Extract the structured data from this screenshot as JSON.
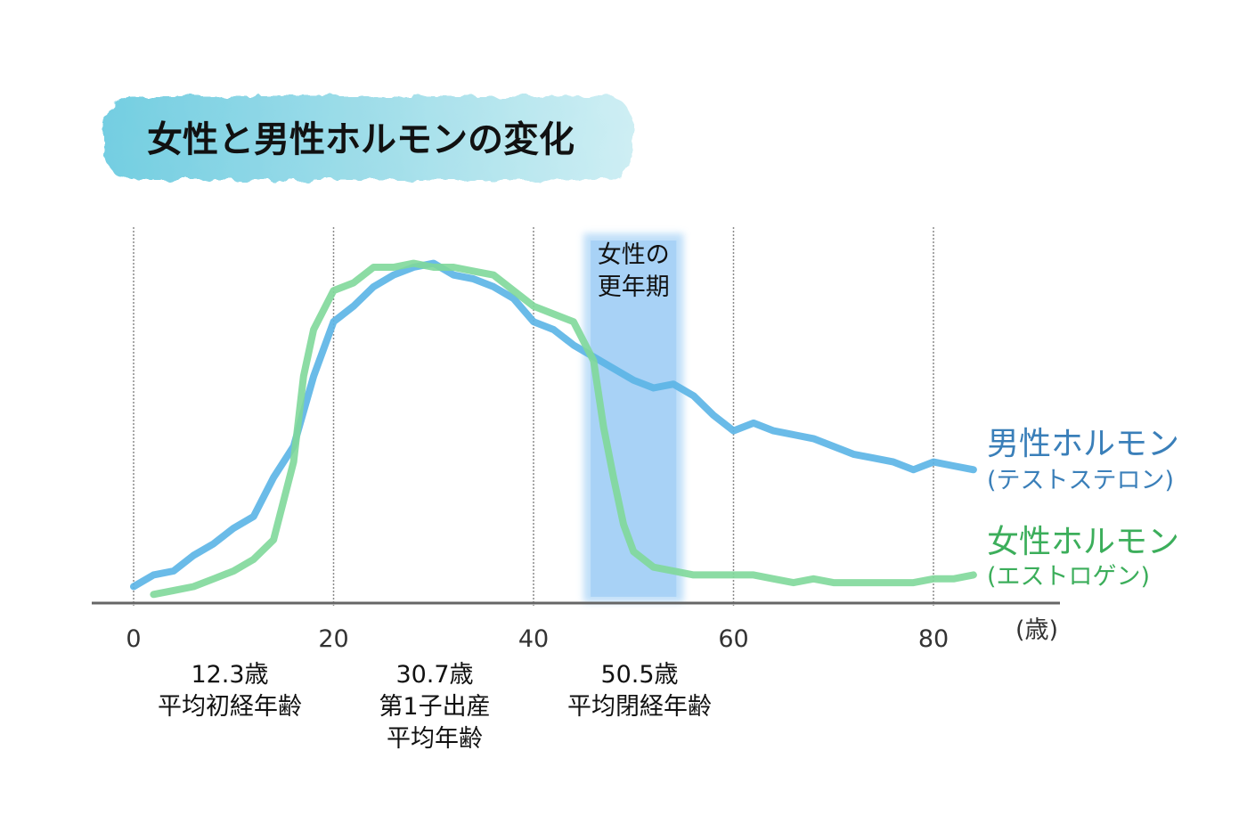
{
  "title": "女性と男性ホルモンの変化",
  "chart_data": {
    "type": "line",
    "xlim": [
      -2,
      90
    ],
    "ylim": [
      0,
      100
    ],
    "grid": true,
    "x_ticks": [
      {
        "value": 0,
        "label": "0"
      },
      {
        "value": 20,
        "label": "20"
      },
      {
        "value": 40,
        "label": "40"
      },
      {
        "value": 60,
        "label": "60"
      },
      {
        "value": 80,
        "label": "80"
      }
    ],
    "x_unit": "(歳)",
    "band": {
      "from": 45,
      "to": 55,
      "label_lines": [
        "女性の",
        "更年期"
      ]
    },
    "series": [
      {
        "name": "男性ホルモン",
        "subtitle": "(テストステロン)",
        "color": "#5ab4e6",
        "label_color": "#3a7fb9",
        "points": [
          [
            0,
            4
          ],
          [
            2,
            7
          ],
          [
            4,
            8
          ],
          [
            6,
            12
          ],
          [
            8,
            15
          ],
          [
            10,
            19
          ],
          [
            12,
            22
          ],
          [
            14,
            32
          ],
          [
            16,
            40
          ],
          [
            18,
            58
          ],
          [
            20,
            72
          ],
          [
            22,
            76
          ],
          [
            24,
            81
          ],
          [
            26,
            84
          ],
          [
            28,
            86
          ],
          [
            30,
            87
          ],
          [
            32,
            84
          ],
          [
            34,
            83
          ],
          [
            36,
            81
          ],
          [
            38,
            78
          ],
          [
            40,
            72
          ],
          [
            42,
            70
          ],
          [
            44,
            66
          ],
          [
            46,
            63
          ],
          [
            48,
            60
          ],
          [
            50,
            57
          ],
          [
            52,
            55
          ],
          [
            54,
            56
          ],
          [
            56,
            53
          ],
          [
            58,
            48
          ],
          [
            60,
            44
          ],
          [
            62,
            46
          ],
          [
            64,
            44
          ],
          [
            66,
            43
          ],
          [
            68,
            42
          ],
          [
            70,
            40
          ],
          [
            72,
            38
          ],
          [
            74,
            37
          ],
          [
            76,
            36
          ],
          [
            78,
            34
          ],
          [
            80,
            36
          ],
          [
            82,
            35
          ],
          [
            84,
            34
          ]
        ]
      },
      {
        "name": "女性ホルモン",
        "subtitle": "(エストロゲン)",
        "color": "#7fd89a",
        "label_color": "#3cae5b",
        "points": [
          [
            2,
            2
          ],
          [
            4,
            3
          ],
          [
            6,
            4
          ],
          [
            8,
            6
          ],
          [
            10,
            8
          ],
          [
            12,
            11
          ],
          [
            14,
            16
          ],
          [
            16,
            36
          ],
          [
            17,
            58
          ],
          [
            18,
            70
          ],
          [
            20,
            80
          ],
          [
            22,
            82
          ],
          [
            24,
            86
          ],
          [
            26,
            86
          ],
          [
            28,
            87
          ],
          [
            30,
            86
          ],
          [
            32,
            86
          ],
          [
            34,
            85
          ],
          [
            36,
            84
          ],
          [
            38,
            80
          ],
          [
            40,
            76
          ],
          [
            42,
            74
          ],
          [
            44,
            72
          ],
          [
            46,
            62
          ],
          [
            47,
            45
          ],
          [
            48,
            32
          ],
          [
            49,
            20
          ],
          [
            50,
            13
          ],
          [
            52,
            9
          ],
          [
            54,
            8
          ],
          [
            56,
            7
          ],
          [
            58,
            7
          ],
          [
            60,
            7
          ],
          [
            62,
            7
          ],
          [
            64,
            6
          ],
          [
            66,
            5
          ],
          [
            68,
            6
          ],
          [
            70,
            5
          ],
          [
            72,
            5
          ],
          [
            74,
            5
          ],
          [
            76,
            5
          ],
          [
            78,
            5
          ],
          [
            80,
            6
          ],
          [
            82,
            6
          ],
          [
            84,
            7
          ]
        ]
      }
    ],
    "annotations": [
      {
        "x": 12.3,
        "lines": [
          "12.3歳",
          "平均初経年齢"
        ]
      },
      {
        "x": 30.7,
        "lines": [
          "30.7歳",
          "第1子出産",
          "平均年齢"
        ]
      },
      {
        "x": 50.5,
        "lines": [
          "50.5歳",
          "平均閉経年齢"
        ]
      }
    ]
  }
}
